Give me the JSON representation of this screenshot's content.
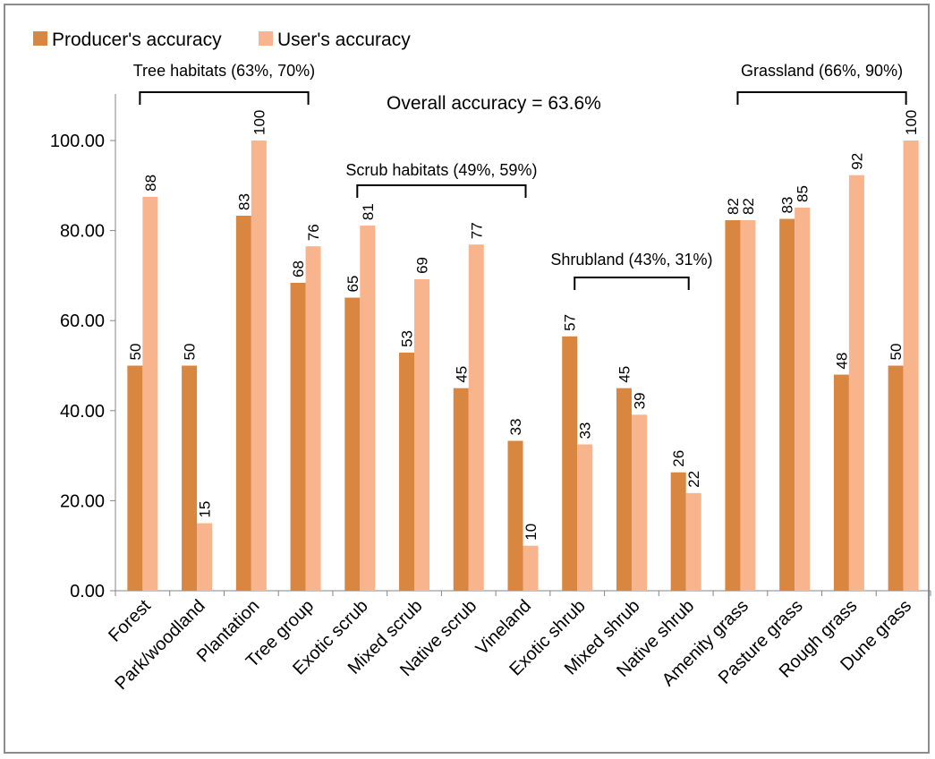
{
  "chart_data": {
    "type": "bar",
    "title": "",
    "xlabel": "",
    "ylabel": "",
    "ylim": [
      0,
      110
    ],
    "y_ticks": [
      "0.00",
      "20.00",
      "40.00",
      "60.00",
      "80.00",
      "100.00"
    ],
    "y_tick_values": [
      0,
      20,
      40,
      60,
      80,
      100
    ],
    "grid": false,
    "legend_position": "top-left",
    "categories": [
      "Forest",
      "Park/woodland",
      "Plantation",
      "Tree group",
      "Exotic scrub",
      "Mixed scrub",
      "Native scrub",
      "Vineland",
      "Exotic shrub",
      "Mixed shrub",
      "Native shrub",
      "Amenity grass",
      "Pasture grass",
      "Rough grass",
      "Dune grass"
    ],
    "series": [
      {
        "name": "Producer's accuracy",
        "color": "#d98640",
        "values": [
          50,
          50,
          83.3,
          68.4,
          65.1,
          52.9,
          45,
          33.3,
          56.5,
          45,
          26.3,
          82.3,
          82.6,
          48,
          50
        ],
        "data_labels": [
          "50",
          "50",
          "83",
          "68",
          "65",
          "53",
          "45",
          "33",
          "57",
          "45",
          "26",
          "82",
          "83",
          "48",
          "50"
        ]
      },
      {
        "name": "User's accuracy",
        "color": "#f7b48d",
        "values": [
          87.5,
          15,
          100,
          76.5,
          81.1,
          69.2,
          76.9,
          10,
          32.5,
          39.1,
          21.7,
          82.3,
          85.1,
          92.3,
          100
        ],
        "data_labels": [
          "88",
          "15",
          "100",
          "76",
          "81",
          "69",
          "77",
          "10",
          "33",
          "39",
          "22",
          "82",
          "85",
          "92",
          "100"
        ]
      }
    ],
    "annotations": {
      "overall": "Overall  accuracy = 63.6%",
      "groups": [
        {
          "label": "Tree habitats (63%, 70%)",
          "from": 0,
          "to": 3
        },
        {
          "label": "Scrub habitats (49%, 59%)",
          "from": 4,
          "to": 7
        },
        {
          "label": "Shrubland (43%, 31%)",
          "from": 8,
          "to": 10
        },
        {
          "label": "Grassland (66%, 90%)",
          "from": 11,
          "to": 14
        }
      ]
    }
  }
}
